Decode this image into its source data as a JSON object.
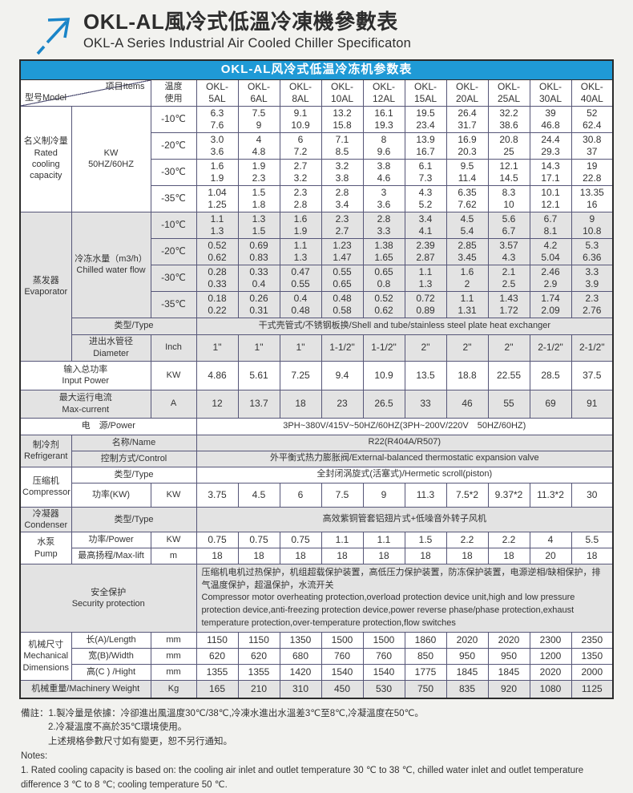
{
  "colors": {
    "accent_blue": "#1f9ad6",
    "grid_line": "#565678",
    "section_line": "#2b2b2b",
    "row_gray": "#e3e3e3"
  },
  "header": {
    "title_zh": "OKL-AL風冷式低溫冷凍機參數表",
    "title_en": "OKL-A Series Industrial Air Cooled Chiller Specificaton",
    "logo_icon": "arrow-up-right-icon"
  },
  "table": {
    "title": "OKL-AL风冷式低温冷冻机参数表",
    "corner_model": "型号Model",
    "corner_items": "项目Items",
    "temp_usage": [
      "温度",
      "使用"
    ],
    "models": [
      {
        "l1": "OKL-",
        "l2": "5AL"
      },
      {
        "l1": "OKL-",
        "l2": "6AL"
      },
      {
        "l1": "OKL-",
        "l2": "8AL"
      },
      {
        "l1": "OKL-",
        "l2": "10AL"
      },
      {
        "l1": "OKL-",
        "l2": "12AL"
      },
      {
        "l1": "OKL-",
        "l2": "15AL"
      },
      {
        "l1": "OKL-",
        "l2": "20AL"
      },
      {
        "l1": "OKL-",
        "l2": "25AL"
      },
      {
        "l1": "OKL-",
        "l2": "30AL"
      },
      {
        "l1": "OKL-",
        "l2": "40AL"
      }
    ],
    "capacity": {
      "label": [
        "名义制冷量",
        "Rated",
        "cooling",
        "capacity"
      ],
      "unit": [
        "KW",
        "50HZ/60HZ"
      ],
      "rows": [
        {
          "temp": "-10℃",
          "hz50": [
            "6.3",
            "7.5",
            "9.1",
            "13.2",
            "16.1",
            "19.5",
            "26.4",
            "32.2",
            "39",
            "52"
          ],
          "hz60": [
            "7.6",
            "9",
            "10.9",
            "15.8",
            "19.3",
            "23.4",
            "31.7",
            "38.6",
            "46.8",
            "62.4"
          ]
        },
        {
          "temp": "-20℃",
          "hz50": [
            "3.0",
            "4",
            "6",
            "7.1",
            "8",
            "13.9",
            "16.9",
            "20.8",
            "24.4",
            "30.8"
          ],
          "hz60": [
            "3.6",
            "4.8",
            "7.2",
            "8.5",
            "9.6",
            "16.7",
            "20.3",
            "25",
            "29.3",
            "37"
          ]
        },
        {
          "temp": "-30℃",
          "hz50": [
            "1.6",
            "1.9",
            "2.7",
            "3.2",
            "3.8",
            "6.1",
            "9.5",
            "12.1",
            "14.3",
            "19"
          ],
          "hz60": [
            "1.9",
            "2.3",
            "3.2",
            "3.8",
            "4.6",
            "7.3",
            "11.4",
            "14.5",
            "17.1",
            "22.8"
          ]
        },
        {
          "temp": "-35℃",
          "hz50": [
            "1.04",
            "1.5",
            "2.3",
            "2.8",
            "3",
            "4.3",
            "6.35",
            "8.3",
            "10.1",
            "13.35"
          ],
          "hz60": [
            "1.25",
            "1.8",
            "2.8",
            "3.4",
            "3.6",
            "5.2",
            "7.62",
            "10",
            "12.1",
            "16"
          ]
        }
      ]
    },
    "evaporator": {
      "label": [
        "蒸发器",
        "Evaporator"
      ],
      "flow_label": [
        "冷冻水量（m3/h）",
        "Chilled water flow"
      ],
      "rows": [
        {
          "temp": "-10℃",
          "hz50": [
            "1.1",
            "1.3",
            "1.6",
            "2.3",
            "2.8",
            "3.4",
            "4.5",
            "5.6",
            "6.7",
            "9"
          ],
          "hz60": [
            "1.3",
            "1.5",
            "1.9",
            "2.7",
            "3.3",
            "4.1",
            "5.4",
            "6.7",
            "8.1",
            "10.8"
          ]
        },
        {
          "temp": "-20℃",
          "hz50": [
            "0.52",
            "0.69",
            "1.1",
            "1.23",
            "1.38",
            "2.39",
            "2.85",
            "3.57",
            "4.2",
            "5.3"
          ],
          "hz60": [
            "0.62",
            "0.83",
            "1.3",
            "1.47",
            "1.65",
            "2.87",
            "3.45",
            "4.3",
            "5.04",
            "6.36"
          ]
        },
        {
          "temp": "-30℃",
          "hz50": [
            "0.28",
            "0.33",
            "0.47",
            "0.55",
            "0.65",
            "1.1",
            "1.6",
            "2.1",
            "2.46",
            "3.3"
          ],
          "hz60": [
            "0.33",
            "0.4",
            "0.55",
            "0.65",
            "0.8",
            "1.3",
            "2",
            "2.5",
            "2.9",
            "3.9"
          ]
        },
        {
          "temp": "-35℃",
          "hz50": [
            "0.18",
            "0.26",
            "0.4",
            "0.48",
            "0.52",
            "0.72",
            "1.1",
            "1.43",
            "1.74",
            "2.3"
          ],
          "hz60": [
            "0.22",
            "0.31",
            "0.48",
            "0.58",
            "0.62",
            "0.89",
            "1.31",
            "1.72",
            "2.09",
            "2.76"
          ]
        }
      ],
      "type_label": "类型/Type",
      "type_value": "干式壳管式/不锈钢板换/Shell and tube/stainless steel plate heat exchanger",
      "diameter_label": [
        "进出水管径",
        "Diameter"
      ],
      "diameter_unit": "Inch",
      "diameters": [
        "1\"",
        "1\"",
        "1\"",
        "1-1/2\"",
        "1-1/2\"",
        "2\"",
        "2\"",
        "2\"",
        "2-1/2\"",
        "2-1/2\""
      ]
    },
    "input_power": {
      "label": [
        "输入总功率",
        "Input Power"
      ],
      "unit": "KW",
      "values": [
        "4.86",
        "5.61",
        "7.25",
        "9.4",
        "10.9",
        "13.5",
        "18.8",
        "22.55",
        "28.5",
        "37.5"
      ]
    },
    "max_current": {
      "label": [
        "最大运行电流",
        "Max-current"
      ],
      "unit": "A",
      "values": [
        "12",
        "13.7",
        "18",
        "23",
        "26.5",
        "33",
        "46",
        "55",
        "69",
        "91"
      ]
    },
    "power_supply": {
      "label": "电　源/Power",
      "value": "3PH~380V/415V~50HZ/60HZ(3PH~200V/220V　50HZ/60HZ)"
    },
    "refrigerant": {
      "label": [
        "制冷剂",
        "Refrigerant"
      ],
      "name_label": "名称/Name",
      "name_value": "R22(R404A/R507)",
      "control_label": "控制方式/Control",
      "control_value": "外平衡式热力膨胀阀/External-balanced thermostatic expansion valve"
    },
    "compressor": {
      "label": [
        "压缩机",
        "Compressor"
      ],
      "type_label": "类型/Type",
      "type_value": "全封闭涡旋式(活塞式)/Hermetic scroll(piston)",
      "power_label": "功率(KW)",
      "power_unit": "KW",
      "power_values": [
        "3.75",
        "4.5",
        "6",
        "7.5",
        "9",
        "11.3",
        "7.5*2",
        "9.37*2",
        "11.3*2",
        "30"
      ]
    },
    "condenser": {
      "label": [
        "冷凝器",
        "Condenser"
      ],
      "type_label": "类型/Type",
      "type_value": "高效紫铜管套铝翅片式+低噪音外转子风机"
    },
    "pump": {
      "label": [
        "水泵",
        "Pump"
      ],
      "power_label": "功率/Power",
      "power_unit": "KW",
      "power_values": [
        "0.75",
        "0.75",
        "0.75",
        "1.1",
        "1.1",
        "1.5",
        "2.2",
        "2.2",
        "4",
        "5.5"
      ],
      "lift_label": "最高扬程/Max-lift",
      "lift_unit": "m",
      "lift_values": [
        "18",
        "18",
        "18",
        "18",
        "18",
        "18",
        "18",
        "18",
        "20",
        "18"
      ]
    },
    "security": {
      "label": [
        "安全保护",
        "Security protection"
      ],
      "text_zh": "压缩机电机过热保护，机组超载保护装置，高低压力保护装置，防冻保护装置，电源逆相/缺相保护，排气温度保护，超温保护，水流开关",
      "text_en": " Compressor motor overheating protection,overload protection device unit,high and low pressure protection device,anti-freezing protection device,power reverse phase/phase protection,exhaust temperature protection,over-temperature protection,flow switches"
    },
    "dimensions": {
      "label": [
        "机械尺寸",
        "Mechanical",
        "Dimensions"
      ],
      "rows": [
        {
          "label": "长(A)/Length",
          "unit": "mm",
          "values": [
            "1150",
            "1150",
            "1350",
            "1500",
            "1500",
            "1860",
            "2020",
            "2020",
            "2300",
            "2350"
          ]
        },
        {
          "label": "宽(B)/Width",
          "unit": "mm",
          "values": [
            "620",
            "620",
            "680",
            "760",
            "760",
            "850",
            "950",
            "950",
            "1200",
            "1350"
          ]
        },
        {
          "label": "高(C ) /Hight",
          "unit": "mm",
          "values": [
            "1355",
            "1355",
            "1420",
            "1540",
            "1540",
            "1775",
            "1845",
            "1845",
            "2020",
            "2000"
          ]
        }
      ]
    },
    "weight": {
      "label": "机械重量/Machinery Weight",
      "unit": "Kg",
      "values": [
        "165",
        "210",
        "310",
        "450",
        "530",
        "750",
        "835",
        "920",
        "1080",
        "1125"
      ]
    }
  },
  "notes": {
    "lines": [
      "備註：1.製冷量是依據：冷卻進出風溫度30℃/38℃,冷凍水進出水溫差3℃至8℃,冷凝溫度在50℃。",
      "2.冷凝溫度不高於35℃環境使用。",
      "上述規格參數尺寸如有變更，恕不另行通知。",
      "Notes:",
      "1. Rated cooling capacity is based on: the cooling air inlet and outlet temperature 30 ℃ to 38 ℃, chilled water inlet and outlet temperature",
      "difference 3 ℃ to 8 ℃; cooling temperature 50 ℃."
    ]
  }
}
